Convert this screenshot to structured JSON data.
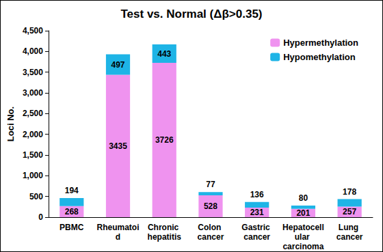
{
  "chart_data": {
    "type": "bar",
    "title": "Test vs. Normal (Δβ>0.35)",
    "y_label": "Loci No.",
    "categories": [
      "PBMC",
      "Rheumatoid",
      "Chronic hepatitis",
      "Colon cancer",
      "Gastric cancer",
      "Hepatocellular carcinoma",
      "Lung cancer"
    ],
    "series": [
      {
        "name": "Hypermethylation",
        "color": "#ef93ef",
        "values": [
          268,
          3435,
          3726,
          528,
          231,
          201,
          257
        ]
      },
      {
        "name": "Hypomethylation",
        "color": "#1eb4e6",
        "values": [
          194,
          497,
          443,
          77,
          136,
          80,
          178
        ]
      }
    ],
    "ylim": [
      0,
      4500
    ],
    "yticks": [
      0,
      500,
      1000,
      1500,
      2000,
      2500,
      3000,
      3500,
      4000,
      4500
    ],
    "stacked": true,
    "data_labels": true,
    "grid": false,
    "legend": "top-right"
  }
}
